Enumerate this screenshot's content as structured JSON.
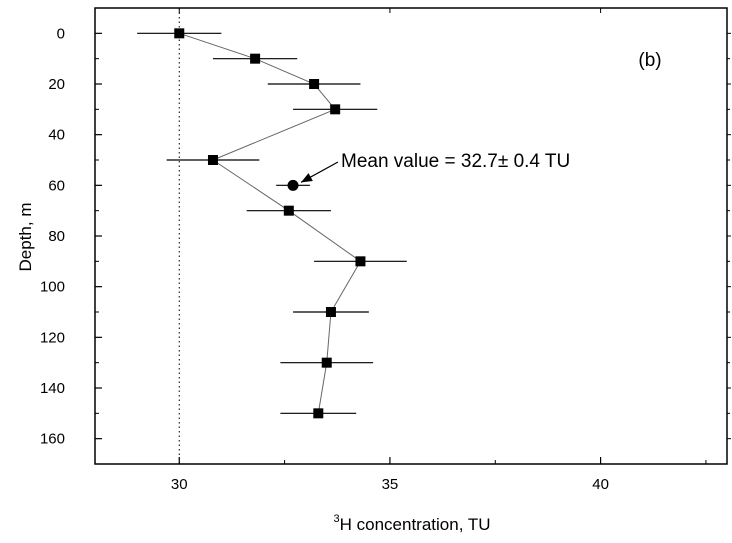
{
  "chart_data": {
    "type": "scatter",
    "panel_label": "(b)",
    "xlabel_superscript": "3",
    "xlabel_main": "H concentration, TU",
    "ylabel": "Depth, m",
    "xlim": [
      28,
      43
    ],
    "ylim": [
      170,
      -10
    ],
    "x_ticks": [
      30,
      35,
      40
    ],
    "y_ticks": [
      0,
      20,
      40,
      60,
      80,
      100,
      120,
      140,
      160
    ],
    "grid": false,
    "reference_line": {
      "x": 30,
      "style": "dotted"
    },
    "series": [
      {
        "marker": "square",
        "connected": true,
        "points": [
          {
            "x": 30.0,
            "y": 0,
            "xerr": 1.0
          },
          {
            "x": 31.8,
            "y": 10,
            "xerr": 1.0
          },
          {
            "x": 33.2,
            "y": 20,
            "xerr": 1.1
          },
          {
            "x": 33.7,
            "y": 30,
            "xerr": 1.0
          },
          {
            "x": 30.8,
            "y": 50,
            "xerr": 1.1
          },
          {
            "x": 32.6,
            "y": 70,
            "xerr": 1.0
          },
          {
            "x": 34.3,
            "y": 90,
            "xerr": 1.1
          },
          {
            "x": 33.6,
            "y": 110,
            "xerr": 0.9
          },
          {
            "x": 33.5,
            "y": 130,
            "xerr": 1.1
          },
          {
            "x": 33.3,
            "y": 150,
            "xerr": 0.9
          }
        ]
      },
      {
        "marker": "circle",
        "connected": false,
        "points": [
          {
            "x": 32.7,
            "y": 60,
            "xerr": 0.4
          }
        ]
      }
    ],
    "annotation": {
      "text": "Mean value = 32.7±  0.4 TU",
      "target": {
        "x": 32.7,
        "y": 60
      }
    }
  }
}
